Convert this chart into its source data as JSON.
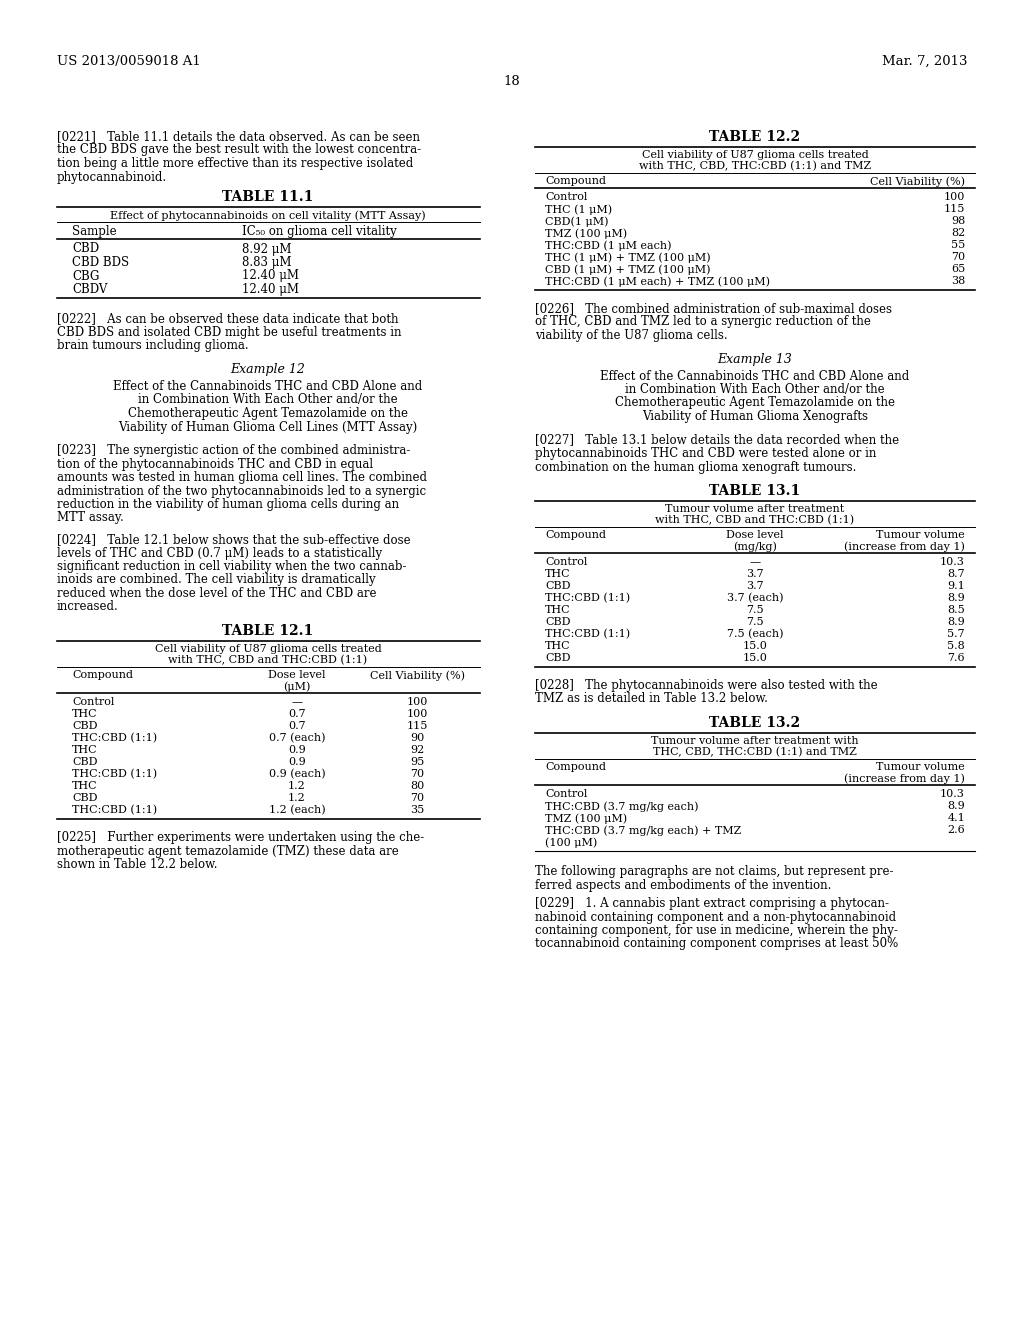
{
  "header_left": "US 2013/0059018 A1",
  "header_right": "Mar. 7, 2013",
  "page_number": "18",
  "bg_color": "#ffffff",
  "text_color": "#000000",
  "para_0221_lines": [
    "[0221]   Table 11.1 details the data observed. As can be seen",
    "the CBD BDS gave the best result with the lowest concentra-",
    "tion being a little more effective than its respective isolated",
    "phytocannabinoid."
  ],
  "table11_title": "TABLE 11.1",
  "table11_subtitle": "Effect of phytocannabinoids on cell vitality (MTT Assay)",
  "table11_col1": "Sample",
  "table11_col2": "IC₅₀ on glioma cell vitality",
  "table11_rows": [
    [
      "CBD",
      "8.92 μM"
    ],
    [
      "CBD BDS",
      "8.83 μM"
    ],
    [
      "CBG",
      "12.40 μM"
    ],
    [
      "CBDV",
      "12.40 μM"
    ]
  ],
  "para_0222_lines": [
    "[0222]   As can be observed these data indicate that both",
    "CBD BDS and isolated CBD might be useful treatments in",
    "brain tumours including glioma."
  ],
  "example12_title": "Example 12",
  "example12_sub_lines": [
    "Effect of the Cannabinoids THC and CBD Alone and",
    "in Combination With Each Other and/or the",
    "Chemotherapeutic Agent Temazolamide on the",
    "Viability of Human Glioma Cell Lines (MTT Assay)"
  ],
  "para_0223_lines": [
    "[0223]   The synergistic action of the combined administra-",
    "tion of the phytocannabinoids THC and CBD in equal",
    "amounts was tested in human glioma cell lines. The combined",
    "administration of the two phytocannabinoids led to a synergic",
    "reduction in the viability of human glioma cells during an",
    "MTT assay."
  ],
  "para_0224_lines": [
    "[0224]   Table 12.1 below shows that the sub-effective dose",
    "levels of THC and CBD (0.7 μM) leads to a statistically",
    "significant reduction in cell viability when the two cannab-",
    "inoids are combined. The cell viability is dramatically",
    "reduced when the dose level of the THC and CBD are",
    "increased."
  ],
  "table121_title": "TABLE 12.1",
  "table121_sub1": "Cell viability of U87 glioma cells treated",
  "table121_sub2": "with THC, CBD and THC:CBD (1:1)",
  "table121_col1": "Compound",
  "table121_col2": "Dose level",
  "table121_col2b": "(μM)",
  "table121_col3": "Cell Viability (%)",
  "table121_rows": [
    [
      "Control",
      "—",
      "100"
    ],
    [
      "THC",
      "0.7",
      "100"
    ],
    [
      "CBD",
      "0.7",
      "115"
    ],
    [
      "THC:CBD (1:1)",
      "0.7 (each)",
      "90"
    ],
    [
      "THC",
      "0.9",
      "92"
    ],
    [
      "CBD",
      "0.9",
      "95"
    ],
    [
      "THC:CBD (1:1)",
      "0.9 (each)",
      "70"
    ],
    [
      "THC",
      "1.2",
      "80"
    ],
    [
      "CBD",
      "1.2",
      "70"
    ],
    [
      "THC:CBD (1:1)",
      "1.2 (each)",
      "35"
    ]
  ],
  "para_0225_lines": [
    "[0225]   Further experiments were undertaken using the che-",
    "motherapeutic agent temazolamide (TMZ) these data are",
    "shown in Table 12.2 below."
  ],
  "table122_title": "TABLE 12.2",
  "table122_sub1": "Cell viability of U87 glioma cells treated",
  "table122_sub2": "with THC, CBD, THC:CBD (1:1) and TMZ",
  "table122_col1": "Compound",
  "table122_col2": "Cell Viability (%)",
  "table122_rows": [
    [
      "Control",
      "100"
    ],
    [
      "THC (1 μM)",
      "115"
    ],
    [
      "CBD(1 μM)",
      "98"
    ],
    [
      "TMZ (100 μM)",
      "82"
    ],
    [
      "THC:CBD (1 μM each)",
      "55"
    ],
    [
      "THC (1 μM) + TMZ (100 μM)",
      "70"
    ],
    [
      "CBD (1 μM) + TMZ (100 μM)",
      "65"
    ],
    [
      "THC:CBD (1 μM each) + TMZ (100 μM)",
      "38"
    ]
  ],
  "para_0226_lines": [
    "[0226]   The combined administration of sub-maximal doses",
    "of THC, CBD and TMZ led to a synergic reduction of the",
    "viability of the U87 glioma cells."
  ],
  "example13_title": "Example 13",
  "example13_sub_lines": [
    "Effect of the Cannabinoids THC and CBD Alone and",
    "in Combination With Each Other and/or the",
    "Chemotherapeutic Agent Temazolamide on the",
    "Viability of Human Glioma Xenografts"
  ],
  "para_0227_lines": [
    "[0227]   Table 13.1 below details the data recorded when the",
    "phytocannabinoids THC and CBD were tested alone or in",
    "combination on the human glioma xenograft tumours."
  ],
  "table131_title": "TABLE 13.1",
  "table131_sub1": "Tumour volume after treatment",
  "table131_sub2": "with THC, CBD and THC:CBD (1:1)",
  "table131_col1": "Compound",
  "table131_col2": "Dose level",
  "table131_col2b": "(mg/kg)",
  "table131_col3": "Tumour volume",
  "table131_col3b": "(increase from day 1)",
  "table131_rows": [
    [
      "Control",
      "—",
      "10.3"
    ],
    [
      "THC",
      "3.7",
      "8.7"
    ],
    [
      "CBD",
      "3.7",
      "9.1"
    ],
    [
      "THC:CBD (1:1)",
      "3.7 (each)",
      "8.9"
    ],
    [
      "THC",
      "7.5",
      "8.5"
    ],
    [
      "CBD",
      "7.5",
      "8.9"
    ],
    [
      "THC:CBD (1:1)",
      "7.5 (each)",
      "5.7"
    ],
    [
      "THC",
      "15.0",
      "5.8"
    ],
    [
      "CBD",
      "15.0",
      "7.6"
    ]
  ],
  "para_0228_lines": [
    "[0228]   The phytocannabinoids were also tested with the",
    "TMZ as is detailed in Table 13.2 below."
  ],
  "table132_title": "TABLE 13.2",
  "table132_sub1": "Tumour volume after treatment with",
  "table132_sub2": "THC, CBD, THC:CBD (1:1) and TMZ",
  "table132_col1": "Compound",
  "table132_col3": "Tumour volume",
  "table132_col3b": "(increase from day 1)",
  "table132_rows": [
    [
      "Control",
      "10.3"
    ],
    [
      "THC:CBD (3.7 mg/kg each)",
      "8.9"
    ],
    [
      "TMZ (100 μM)",
      "4.1"
    ],
    [
      "THC:CBD (3.7 mg/kg each) + TMZ",
      "2.6"
    ],
    [
      "(100 μM)",
      ""
    ]
  ],
  "para_following_lines": [
    "The following paragraphs are not claims, but represent pre-",
    "ferred aspects and embodiments of the invention."
  ],
  "para_0229_lines": [
    "[0229]   1. A ‪cannabis‬ plant extract comprising a phytocan-",
    "nabinoid containing component and a non-phytocannabinoid",
    "containing component, for use in medicine, wherein the phy-",
    "tocannabinoid containing component comprises at least 50%"
  ]
}
